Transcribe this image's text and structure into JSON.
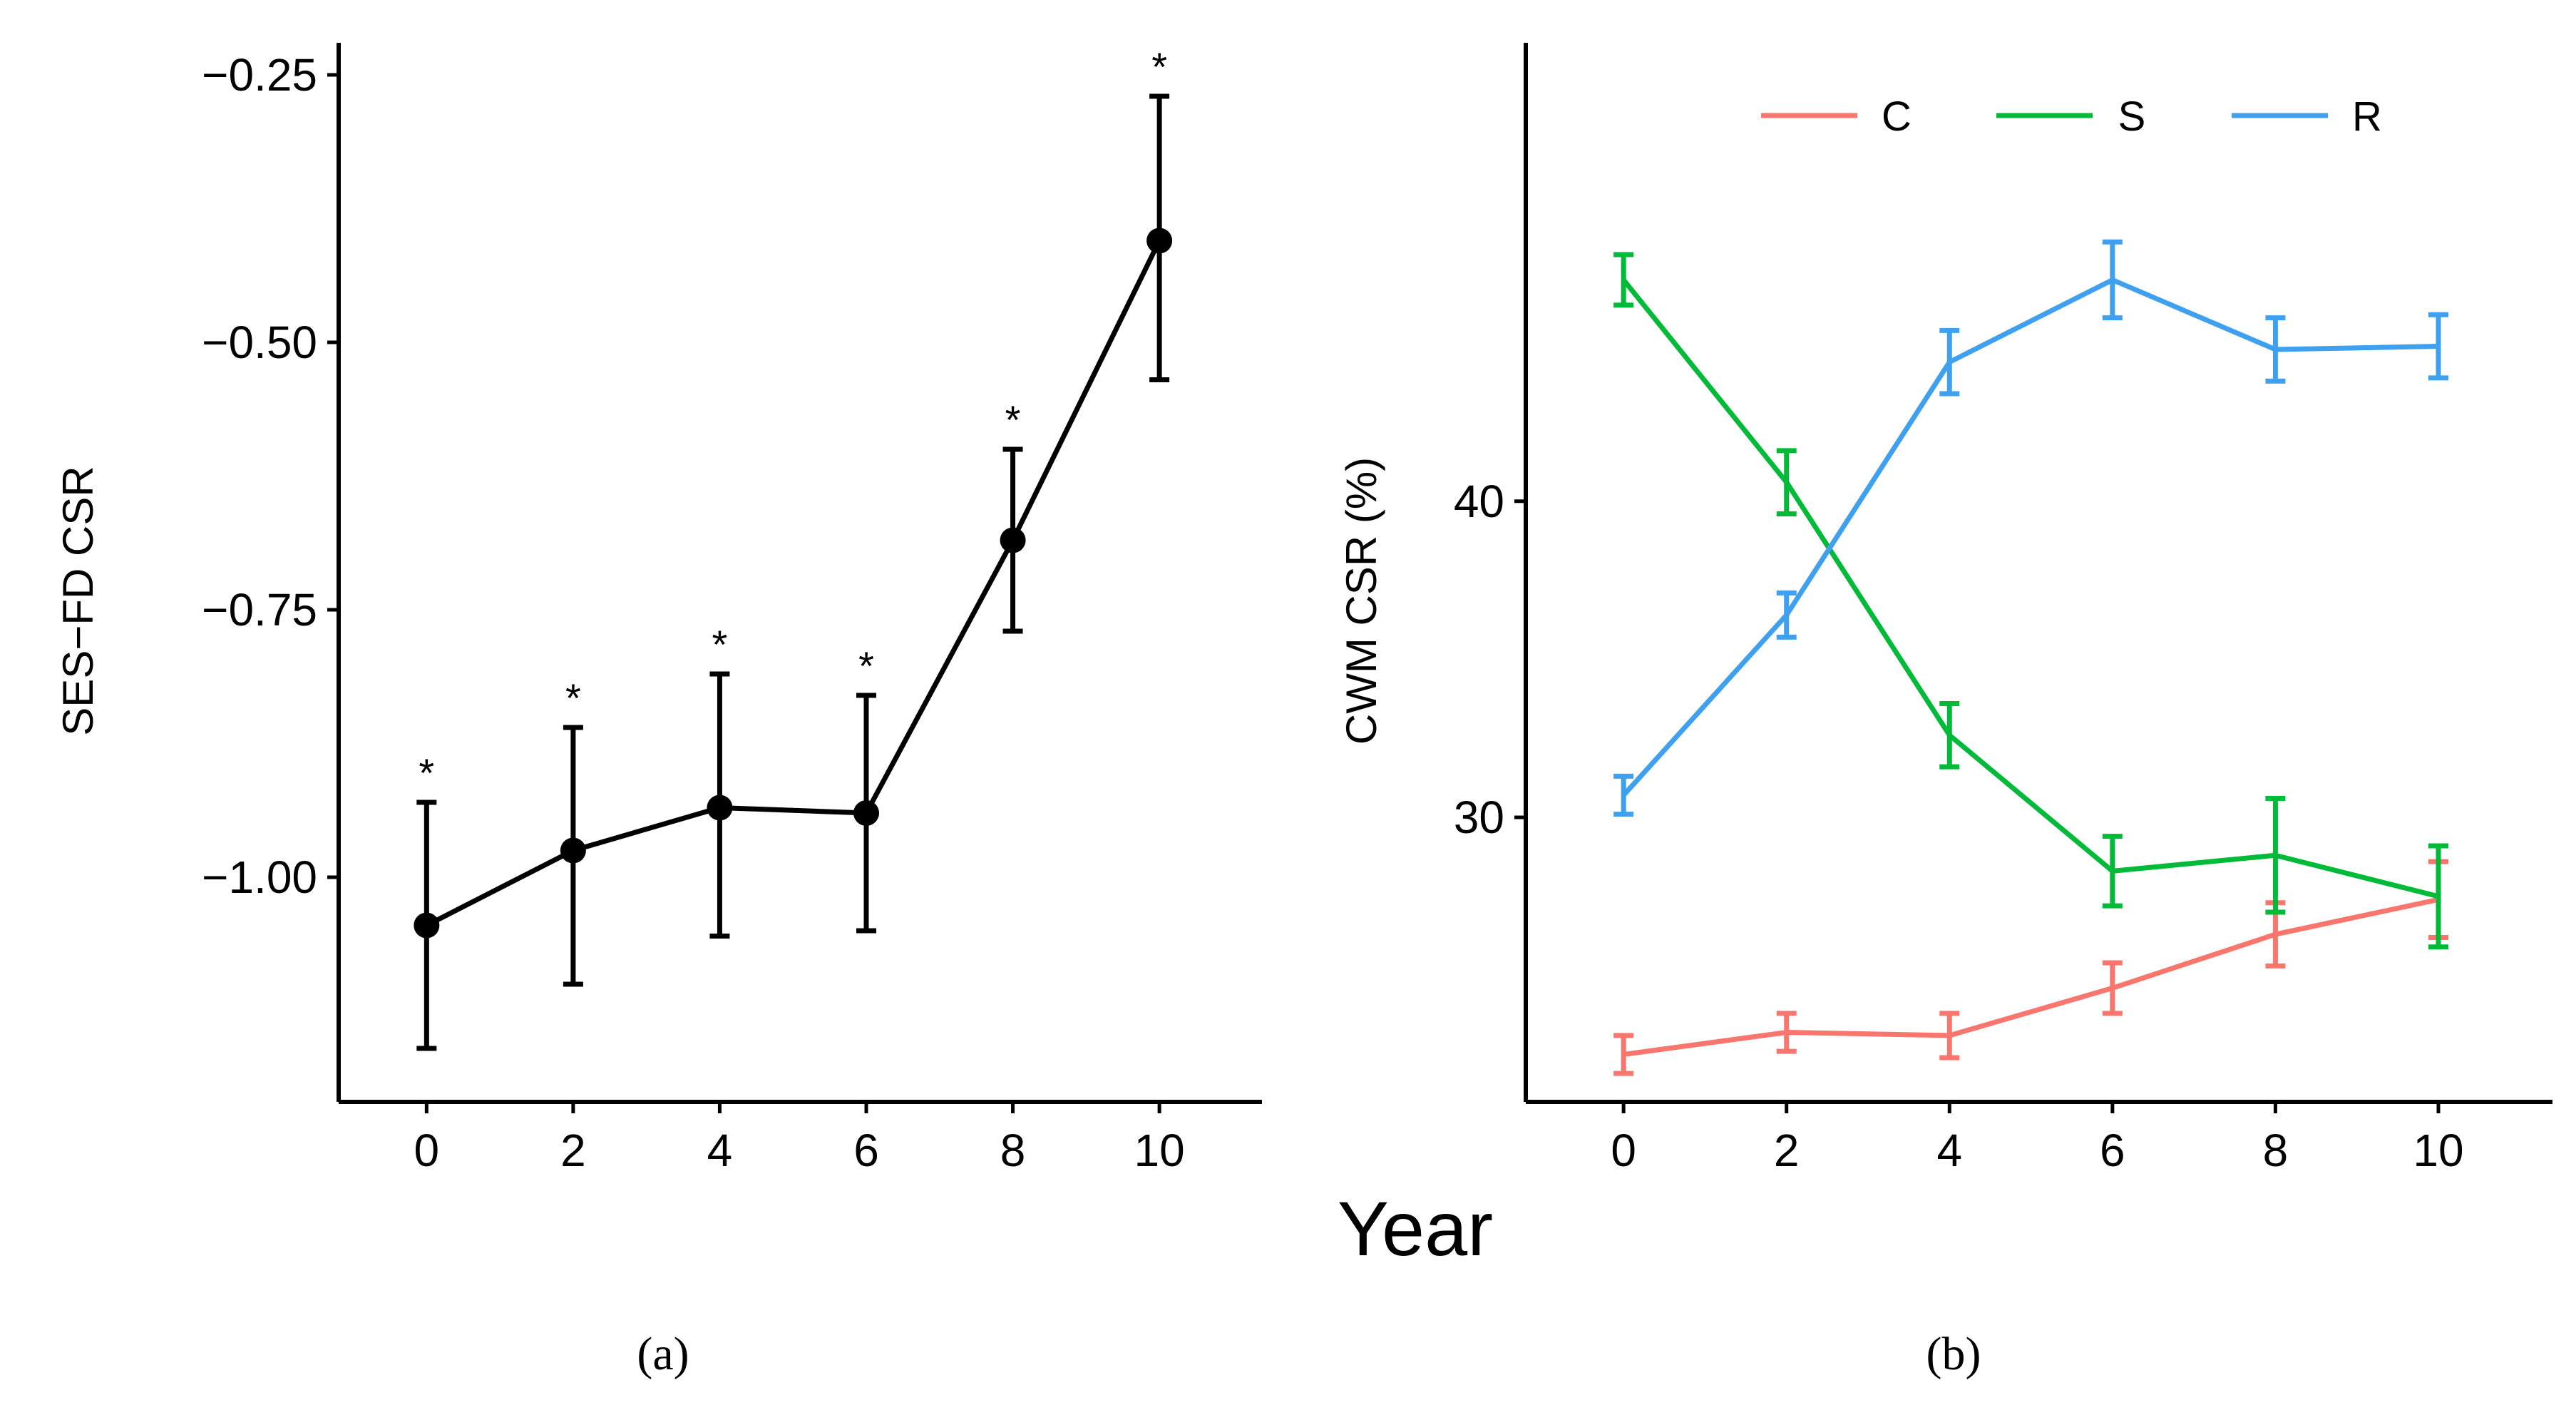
{
  "chart_data": [
    {
      "panel": "a",
      "type": "line",
      "panel_label": "(a)",
      "xlabel": "Year",
      "ylabel": "SES−FD CSR",
      "x": [
        0,
        2,
        4,
        6,
        8,
        10
      ],
      "x_tick_labels": [
        "0",
        "2",
        "4",
        "6",
        "8",
        "10"
      ],
      "y_tick_values": [
        -0.25,
        -0.5,
        -0.75,
        -1.0
      ],
      "y_tick_labels": [
        "−0.25",
        "−0.50",
        "−0.75",
        "−1.00"
      ],
      "xlim": [
        -1.2,
        11.4
      ],
      "ylim": [
        -1.21,
        -0.22
      ],
      "series": [
        {
          "name": "SES-FD CSR",
          "color": "#000000",
          "values": [
            -1.045,
            -0.975,
            -0.935,
            -0.94,
            -0.685,
            -0.405
          ],
          "err_low": [
            -1.16,
            -1.1,
            -1.055,
            -1.05,
            -0.77,
            -0.535
          ],
          "err_high": [
            -0.93,
            -0.86,
            -0.81,
            -0.83,
            -0.6,
            -0.27
          ],
          "annotations": [
            "*",
            "*",
            "*",
            "*",
            "*",
            "*"
          ]
        }
      ]
    },
    {
      "panel": "b",
      "type": "line",
      "panel_label": "(b)",
      "xlabel": "Year",
      "ylabel": "CWM CSR (%)",
      "x": [
        0,
        2,
        4,
        6,
        8,
        10
      ],
      "x_tick_labels": [
        "0",
        "2",
        "4",
        "6",
        "8",
        "10"
      ],
      "y_tick_values": [
        30,
        40
      ],
      "y_tick_labels": [
        "30",
        "40"
      ],
      "xlim": [
        -1.2,
        11.4
      ],
      "ylim": [
        21,
        54.5
      ],
      "legend": {
        "position": "top",
        "entries": [
          "C",
          "S",
          "R"
        ]
      },
      "series": [
        {
          "name": "C",
          "color": "#F8766D",
          "values": [
            22.5,
            23.2,
            23.1,
            24.6,
            26.3,
            27.4
          ],
          "err_low": [
            21.9,
            22.6,
            22.4,
            23.8,
            25.3,
            26.2
          ],
          "err_high": [
            23.1,
            23.8,
            23.8,
            25.4,
            27.3,
            28.6
          ]
        },
        {
          "name": "S",
          "color": "#00BA38",
          "values": [
            47.0,
            40.6,
            32.6,
            28.3,
            28.8,
            27.5
          ],
          "err_low": [
            46.2,
            39.6,
            31.6,
            27.2,
            27.0,
            25.9
          ],
          "err_high": [
            47.8,
            41.6,
            33.6,
            29.4,
            30.6,
            29.1
          ]
        },
        {
          "name": "R",
          "color": "#3FA0F0",
          "values": [
            30.7,
            36.4,
            44.4,
            47.0,
            44.8,
            44.9
          ],
          "err_low": [
            30.1,
            35.7,
            43.4,
            45.8,
            43.8,
            43.9
          ],
          "err_high": [
            31.3,
            37.1,
            45.4,
            48.2,
            45.8,
            45.9
          ]
        }
      ]
    }
  ]
}
